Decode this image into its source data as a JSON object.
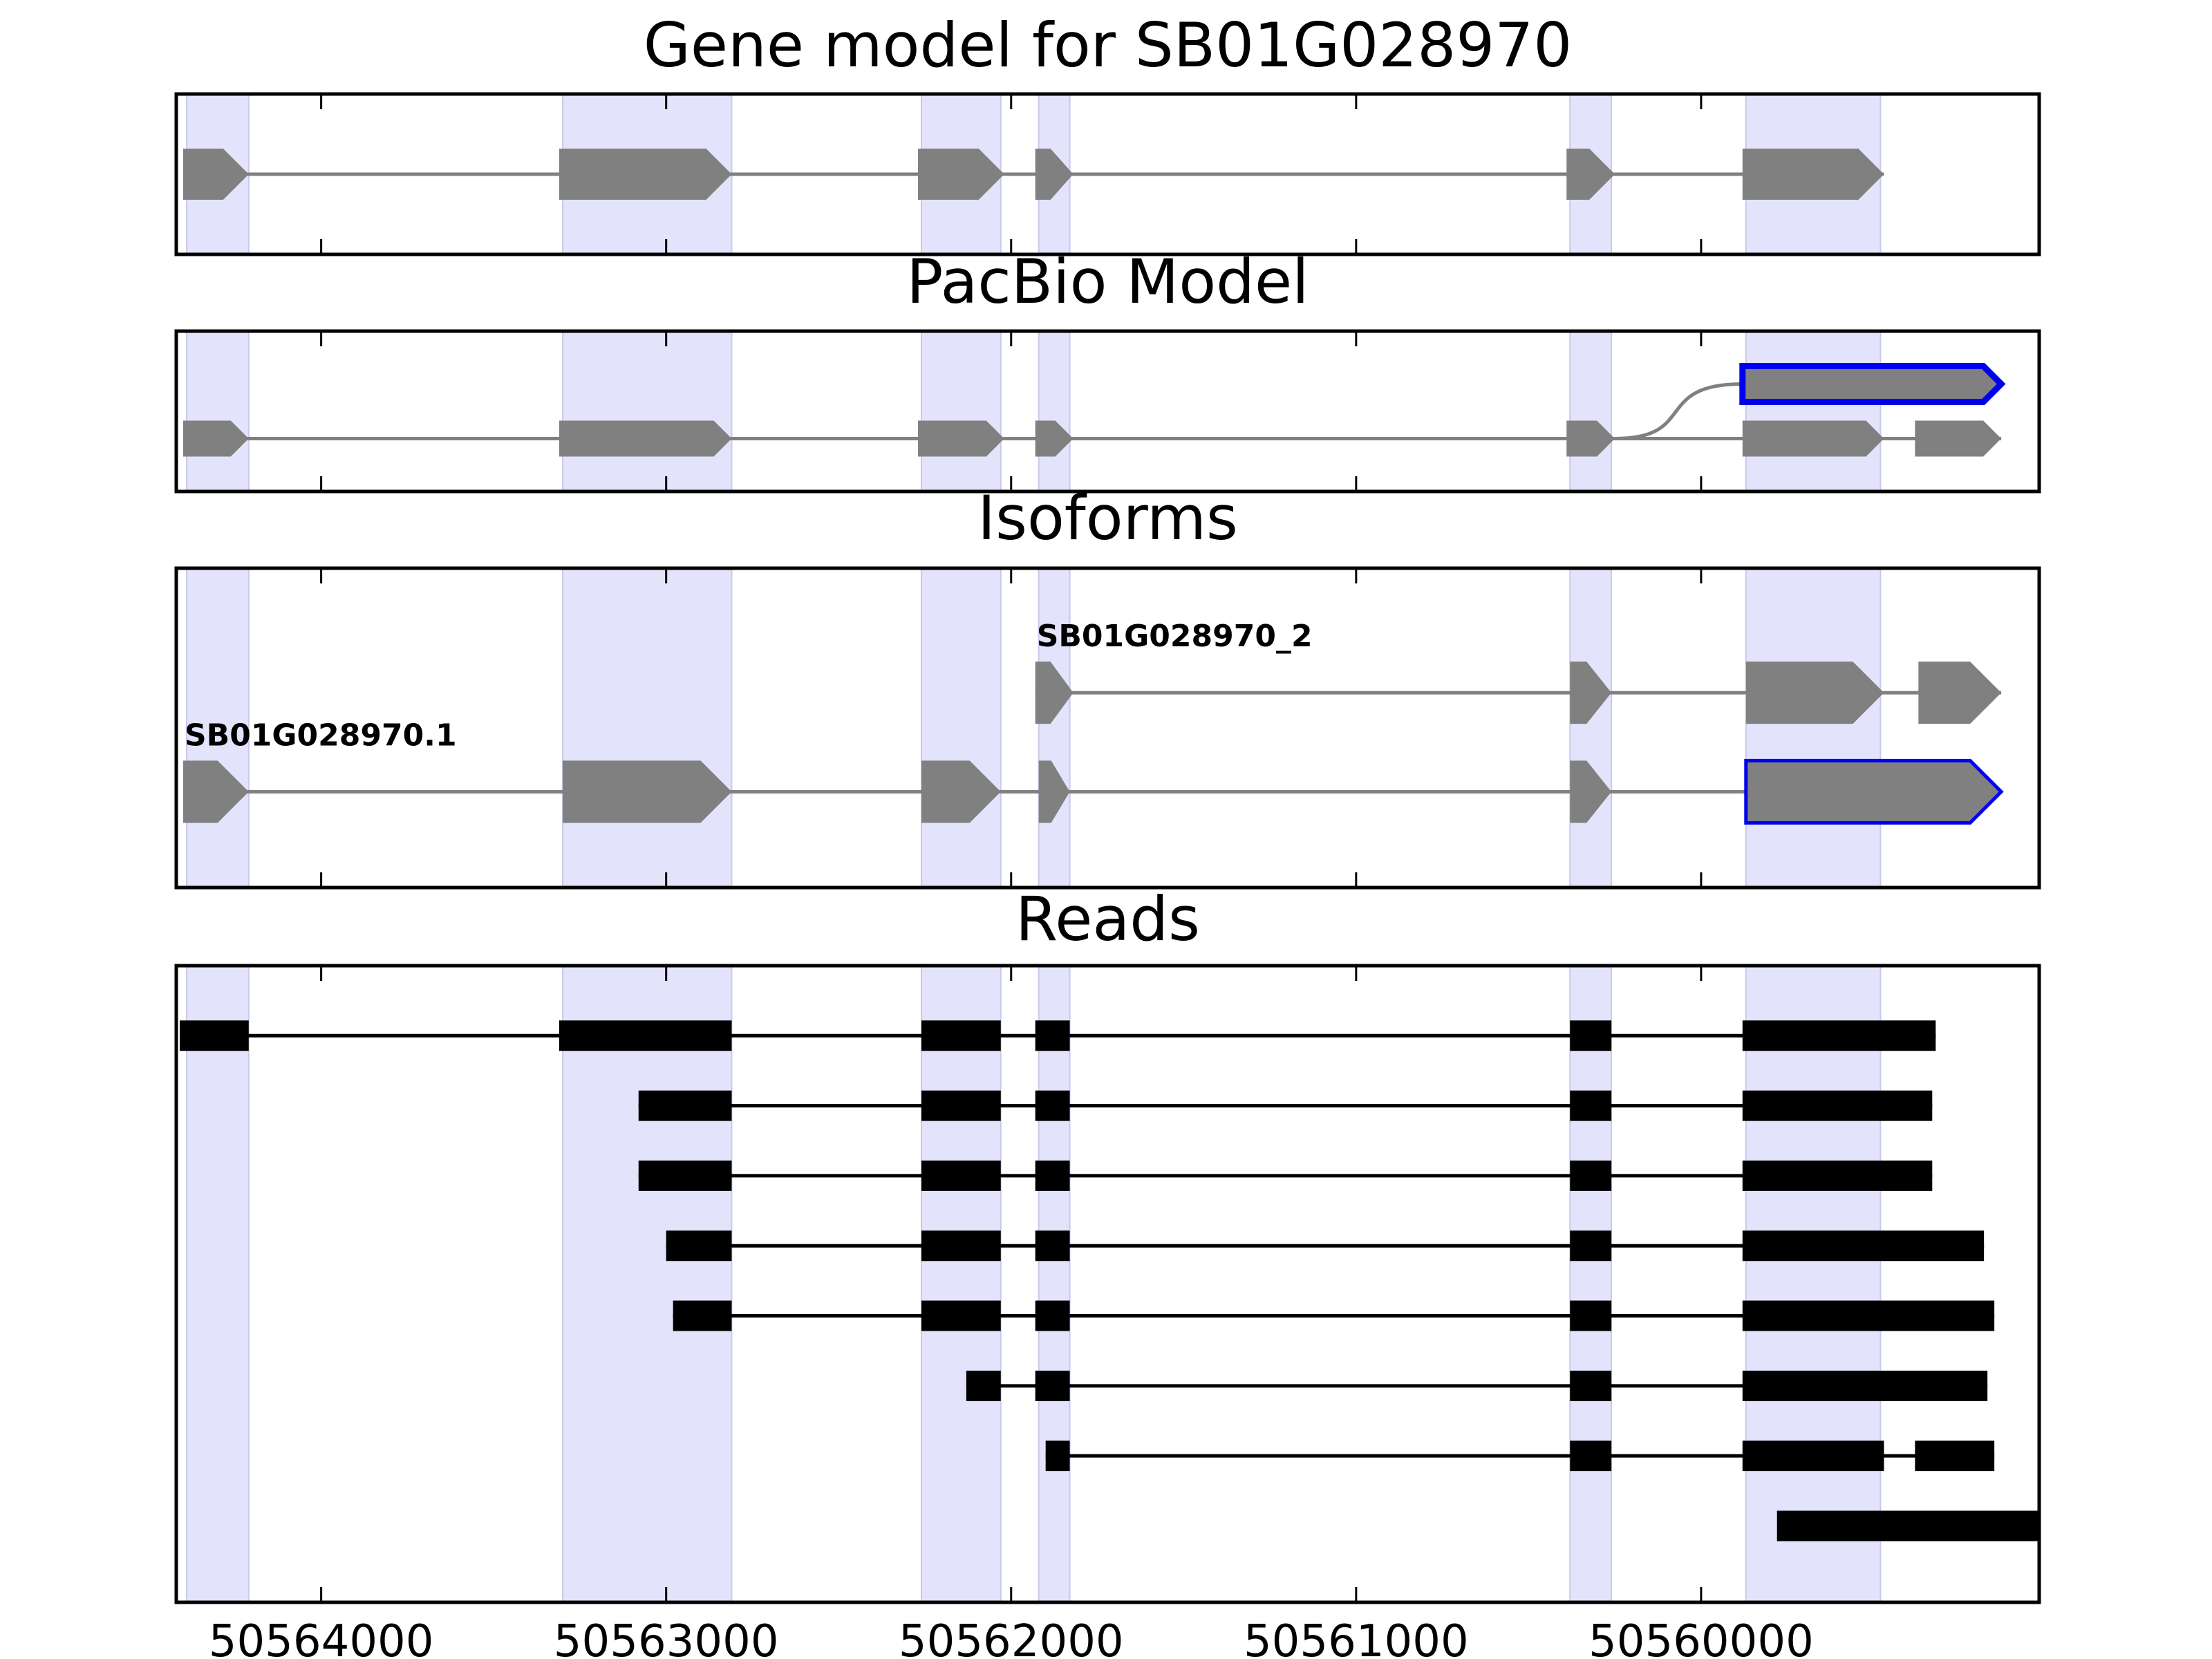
{
  "chart_data": {
    "type": "gene_model_tracks",
    "x_axis": {
      "reversed": true,
      "xlim": [
        50564420,
        50559020
      ],
      "ticks": [
        50564000,
        50563000,
        50562000,
        50561000,
        50560000
      ],
      "tick_labels": [
        "50564000",
        "50563000",
        "50562000",
        "50561000",
        "50560000"
      ]
    },
    "highlight_exons": [
      [
        50564390,
        50564210
      ],
      [
        50563300,
        50562810
      ],
      [
        50562260,
        50562030
      ],
      [
        50561920,
        50561830
      ],
      [
        50560380,
        50560260
      ],
      [
        50559870,
        50559480
      ]
    ],
    "panels": [
      {
        "id": "gene-model",
        "title": "Gene model for SB01G028970",
        "rows": [
          {
            "y": 0.5,
            "style": "gray",
            "label": "",
            "exons": [
              [
                50564400,
                50564210
              ],
              [
                50563310,
                50562810
              ],
              [
                50562270,
                50562020
              ],
              [
                50561930,
                50561820
              ],
              [
                50560390,
                50560250
              ],
              [
                50559880,
                50559470
              ]
            ]
          }
        ]
      },
      {
        "id": "pacbio-model",
        "title": "PacBio Model",
        "rows": [
          {
            "y": 0.33,
            "style": "gray",
            "label": "",
            "exons": [
              [
                50564400,
                50564210
              ],
              [
                50563310,
                50562810
              ],
              [
                50562270,
                50562020
              ],
              [
                50561930,
                50561820
              ],
              [
                50560390,
                50560250
              ],
              [
                50559880,
                50559470
              ],
              [
                50559380,
                50559130
              ]
            ]
          },
          {
            "y": 0.67,
            "style": "gray-blue",
            "label": "",
            "curve_from": 50560250,
            "exons": [
              [
                50559880,
                50559130
              ]
            ]
          }
        ]
      },
      {
        "id": "isoforms",
        "title": "Isoforms",
        "rows": [
          {
            "y": 0.3,
            "style": "gray-blue-last",
            "label": "SB01G028970.1",
            "exons": [
              [
                50564400,
                50564210
              ],
              [
                50563300,
                50562810
              ],
              [
                50562260,
                50562030
              ],
              [
                50561920,
                50561830
              ],
              [
                50560380,
                50560260
              ],
              [
                50559870,
                50559130
              ]
            ]
          },
          {
            "y": 0.61,
            "style": "gray",
            "label": "SB01G028970_2",
            "exons": [
              [
                50561930,
                50561820
              ],
              [
                50560380,
                50560260
              ],
              [
                50559870,
                50559470
              ],
              [
                50559370,
                50559130
              ]
            ]
          }
        ]
      },
      {
        "id": "reads",
        "title": "Reads",
        "rows": [
          {
            "y": 0.89,
            "style": "black",
            "label": "",
            "exons": [
              [
                50564410,
                50564210
              ],
              [
                50563310,
                50562810
              ],
              [
                50562260,
                50562030
              ],
              [
                50561930,
                50561830
              ],
              [
                50560380,
                50560260
              ],
              [
                50559880,
                50559320
              ]
            ]
          },
          {
            "y": 0.78,
            "style": "black",
            "label": "",
            "exons": [
              [
                50563080,
                50562810
              ],
              [
                50562260,
                50562030
              ],
              [
                50561930,
                50561830
              ],
              [
                50560380,
                50560260
              ],
              [
                50559880,
                50559330
              ]
            ]
          },
          {
            "y": 0.67,
            "style": "black",
            "label": "",
            "exons": [
              [
                50563080,
                50562810
              ],
              [
                50562260,
                50562030
              ],
              [
                50561930,
                50561830
              ],
              [
                50560380,
                50560260
              ],
              [
                50559880,
                50559330
              ]
            ]
          },
          {
            "y": 0.56,
            "style": "black",
            "label": "",
            "exons": [
              [
                50563000,
                50562810
              ],
              [
                50562260,
                50562030
              ],
              [
                50561930,
                50561830
              ],
              [
                50560380,
                50560260
              ],
              [
                50559880,
                50559180
              ]
            ]
          },
          {
            "y": 0.45,
            "style": "black",
            "label": "",
            "exons": [
              [
                50562980,
                50562810
              ],
              [
                50562260,
                50562030
              ],
              [
                50561930,
                50561830
              ],
              [
                50560380,
                50560260
              ],
              [
                50559880,
                50559150
              ]
            ]
          },
          {
            "y": 0.34,
            "style": "black",
            "label": "",
            "exons": [
              [
                50562130,
                50562030
              ],
              [
                50561930,
                50561830
              ],
              [
                50560380,
                50560260
              ],
              [
                50559880,
                50559170
              ]
            ]
          },
          {
            "y": 0.23,
            "style": "black",
            "label": "",
            "exons": [
              [
                50561900,
                50561830
              ],
              [
                50560380,
                50560260
              ],
              [
                50559880,
                50559470
              ],
              [
                50559380,
                50559150
              ]
            ]
          },
          {
            "y": 0.12,
            "style": "black",
            "label": "",
            "exons": [
              [
                50559780,
                50559020
              ]
            ]
          }
        ]
      }
    ]
  }
}
